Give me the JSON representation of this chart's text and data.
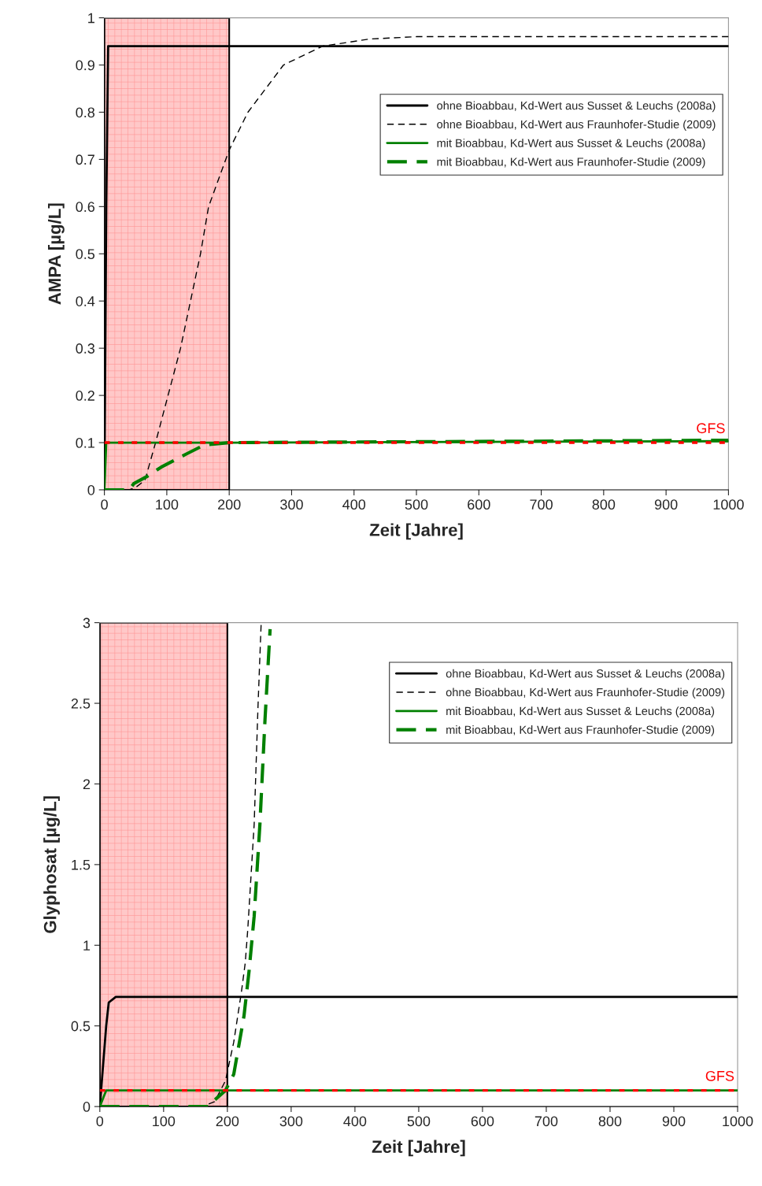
{
  "chart_data": [
    {
      "type": "line",
      "ylabel": "AMPA [µg/L]",
      "xlabel": "Zeit [Jahre]",
      "xlim": [
        0,
        1000
      ],
      "xticks": [
        0,
        100,
        200,
        300,
        400,
        500,
        600,
        700,
        800,
        900,
        1000
      ],
      "ylim": [
        0,
        1
      ],
      "yticks": [
        0,
        0.1,
        0.2,
        0.3,
        0.4,
        0.5,
        0.6,
        0.7,
        0.8,
        0.9,
        1
      ],
      "grid": false,
      "legend": "top right",
      "series": [
        {
          "name": "ohne Bioabbau, Kd-Wert aus Susset & Leuchs (2008a)",
          "color": "#000000",
          "line_style": "solid",
          "x": [
            0,
            3,
            6,
            1000
          ],
          "values": [
            0,
            0.6,
            0.94,
            0.94
          ]
        },
        {
          "name": "ohne Bioabbau, Kd-Wert aus Fraunhofer-Studie (2009)",
          "color": "#000000",
          "line_style": "dashed",
          "x": [
            0,
            40,
            50,
            65,
            82,
            122,
            154,
            167,
            200,
            230,
            287,
            350,
            425,
            500,
            1000
          ],
          "values": [
            0,
            0,
            0.005,
            0.02,
            0.1,
            0.3,
            0.5,
            0.6,
            0.72,
            0.8,
            0.9,
            0.94,
            0.955,
            0.96,
            0.96
          ]
        },
        {
          "name": "mit Bioabbau, Kd-Wert aus Susset & Leuchs (2008a)",
          "color": "#008000",
          "line_style": "solid",
          "x": [
            0,
            3,
            200,
            1000
          ],
          "values": [
            0,
            0.1,
            0.1,
            0.103
          ]
        },
        {
          "name": "mit Bioabbau, Kd-Wert aus Fraunhofer-Studie (2009)",
          "color": "#008000",
          "line_style": "dashed",
          "x": [
            0,
            40,
            47,
            68,
            91,
            130,
            160,
            200,
            1000
          ],
          "values": [
            0,
            0,
            0.013,
            0.028,
            0.048,
            0.075,
            0.095,
            0.1,
            0.105
          ]
        }
      ],
      "ref_lines": [
        {
          "axis": "y",
          "value": 0.1,
          "label": "GFS",
          "color": "#ff0000",
          "line_style": "dotted"
        }
      ],
      "bands": [
        {
          "axis": "x",
          "from": 0,
          "to": 200,
          "color": "#ffc8c8"
        }
      ]
    },
    {
      "type": "line",
      "ylabel": "Glyphosat [µg/L]",
      "xlabel": "Zeit [Jahre]",
      "xlim": [
        0,
        1000
      ],
      "xticks": [
        0,
        100,
        200,
        300,
        400,
        500,
        600,
        700,
        800,
        900,
        1000
      ],
      "ylim": [
        0,
        3
      ],
      "yticks": [
        0,
        0.5,
        1,
        1.5,
        2,
        2.5,
        3
      ],
      "grid": false,
      "legend": "top right",
      "series": [
        {
          "name": "ohne Bioabbau, Kd-Wert aus Susset & Leuchs (2008a)",
          "color": "#000000",
          "line_style": "solid",
          "x": [
            0,
            10,
            14,
            25,
            1000
          ],
          "values": [
            0,
            0.5,
            0.645,
            0.68,
            0.68
          ]
        },
        {
          "name": "ohne Bioabbau, Kd-Wert aus Fraunhofer-Studie (2009)",
          "color": "#000000",
          "line_style": "dashed",
          "x": [
            0,
            160,
            180,
            197,
            210,
            222,
            228,
            232,
            242,
            248,
            253
          ],
          "values": [
            0,
            0,
            0.03,
            0.16,
            0.4,
            0.71,
            0.89,
            1.1,
            1.75,
            2.48,
            3.0
          ]
        },
        {
          "name": "mit Bioabbau, Kd-Wert aus Susset & Leuchs (2008a)",
          "color": "#008000",
          "line_style": "solid",
          "x": [
            0,
            10,
            1000
          ],
          "values": [
            0,
            0.1,
            0.1
          ]
        },
        {
          "name": "mit Bioabbau, Kd-Wert aus Fraunhofer-Studie (2009)",
          "color": "#008000",
          "line_style": "dashed",
          "x": [
            0,
            170,
            180,
            197,
            210,
            226,
            234,
            242,
            251,
            259,
            267
          ],
          "values": [
            0,
            0,
            0.04,
            0.1,
            0.2,
            0.56,
            0.84,
            1.18,
            1.75,
            2.4,
            2.96
          ]
        }
      ],
      "ref_lines": [
        {
          "axis": "y",
          "value": 0.1,
          "label": "GFS",
          "color": "#ff0000",
          "line_style": "dotted"
        }
      ],
      "bands": [
        {
          "axis": "x",
          "from": 0,
          "to": 200,
          "color": "#ffc8c8"
        }
      ]
    }
  ]
}
